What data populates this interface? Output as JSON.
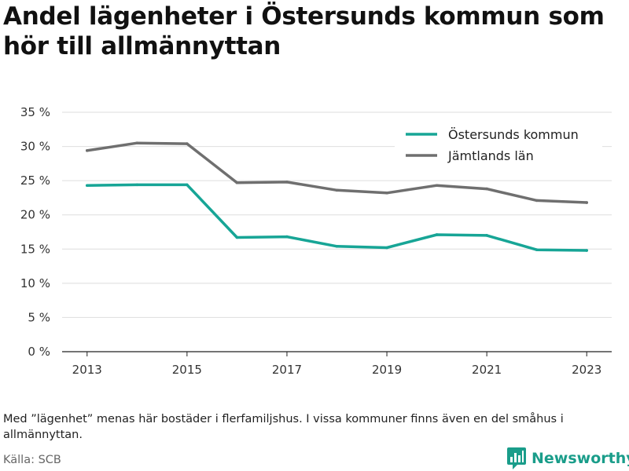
{
  "title": "Andel lägenheter i Östersunds kommun som hör till allmännyttan",
  "footnote": "Med ”lägenhet” menas här bostäder i flerfamiljshus. I vissa kommuner finns även en del småhus i allmännyttan.",
  "source": "Källa: SCB",
  "brand": "Newsworthy",
  "colors": {
    "ostersund": "#17a596",
    "jamtland": "#6f6f6f",
    "brand": "#1a9d8a"
  },
  "chart_data": {
    "type": "line",
    "x": [
      2013,
      2014,
      2015,
      2016,
      2017,
      2018,
      2019,
      2020,
      2021,
      2022,
      2023
    ],
    "xticks": [
      2013,
      2015,
      2017,
      2019,
      2021,
      2023
    ],
    "xtick_labels": [
      "2013",
      "2015",
      "2017",
      "2019",
      "2021",
      "2023"
    ],
    "yticks": [
      0,
      5,
      10,
      15,
      20,
      25,
      30,
      35
    ],
    "ytick_labels": [
      "0 %",
      "5 %",
      "10 %",
      "15 %",
      "20 %",
      "25 %",
      "30 %",
      "35 %"
    ],
    "ylim": [
      0,
      35
    ],
    "xlim": [
      2012.5,
      2023.5
    ],
    "grid": true,
    "legend_position": "top-right",
    "series": [
      {
        "name": "Östersunds kommun",
        "color": "#17a596",
        "values": [
          24.3,
          24.4,
          24.4,
          16.7,
          16.8,
          15.4,
          15.2,
          17.1,
          17.0,
          14.9,
          14.8
        ]
      },
      {
        "name": "Jämtlands län",
        "color": "#6f6f6f",
        "values": [
          29.4,
          30.5,
          30.4,
          24.7,
          24.8,
          23.6,
          23.2,
          24.3,
          23.8,
          22.1,
          21.8
        ]
      }
    ]
  }
}
